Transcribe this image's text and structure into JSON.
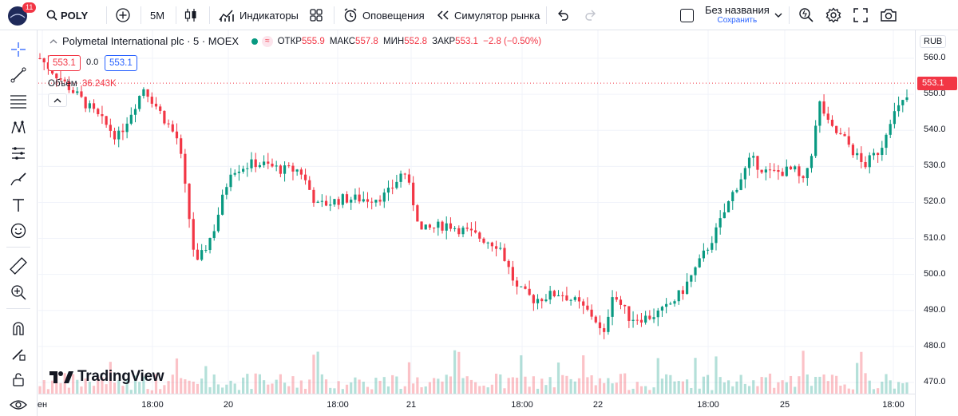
{
  "topbar": {
    "notification_count": "11",
    "symbol": "POLY",
    "interval": "5M",
    "indicators_label": "Индикаторы",
    "alerts_label": "Оповещения",
    "replay_label": "Симулятор рынка",
    "layout_name": "Без названия",
    "layout_status": "Сохранить"
  },
  "legend": {
    "title": "Polymetal International plc · 5 · MOEX",
    "open_label": "ОТКР",
    "open": "555.9",
    "high_label": "МАКС",
    "high": "557.8",
    "low_label": "МИН",
    "low": "552.8",
    "close_label": "ЗАКР",
    "close": "553.1",
    "change": "−2.8 (−0.50%)",
    "sell_price": "553.1",
    "spread": "0.0",
    "buy_price": "553.1",
    "volume_label": "Объём",
    "volume_value": "36.243K"
  },
  "axis": {
    "currency": "RUB",
    "last_price_label": "553.1"
  },
  "watermark": "TradingView",
  "colors": {
    "up": "#089981",
    "down": "#f23645",
    "grid": "#f0f3fa",
    "accent": "#2962ff"
  },
  "chart_data": {
    "type": "candlestick",
    "symbol": "POLY",
    "exchange": "MOEX",
    "interval": "5",
    "ylim": [
      465,
      563
    ],
    "y_ticks": [
      470,
      480,
      490,
      500,
      510,
      520,
      530,
      540,
      550,
      560
    ],
    "x_ticks": [
      "ен",
      "18:00",
      "20",
      "18:00",
      "21",
      "18:00",
      "22",
      "18:00",
      "25",
      "18:00"
    ],
    "last_price": 553.1,
    "price_path": [
      {
        "t": 0,
        "p": 560
      },
      {
        "t": 0.05,
        "p": 548
      },
      {
        "t": 0.09,
        "p": 538
      },
      {
        "t": 0.12,
        "p": 552
      },
      {
        "t": 0.16,
        "p": 537
      },
      {
        "t": 0.18,
        "p": 502
      },
      {
        "t": 0.2,
        "p": 512
      },
      {
        "t": 0.22,
        "p": 529
      },
      {
        "t": 0.25,
        "p": 531
      },
      {
        "t": 0.28,
        "p": 529
      },
      {
        "t": 0.3,
        "p": 529
      },
      {
        "t": 0.32,
        "p": 519
      },
      {
        "t": 0.35,
        "p": 521
      },
      {
        "t": 0.38,
        "p": 521
      },
      {
        "t": 0.4,
        "p": 522
      },
      {
        "t": 0.42,
        "p": 529
      },
      {
        "t": 0.44,
        "p": 512
      },
      {
        "t": 0.47,
        "p": 514
      },
      {
        "t": 0.5,
        "p": 511
      },
      {
        "t": 0.53,
        "p": 508
      },
      {
        "t": 0.55,
        "p": 496
      },
      {
        "t": 0.57,
        "p": 493
      },
      {
        "t": 0.6,
        "p": 495
      },
      {
        "t": 0.62,
        "p": 492
      },
      {
        "t": 0.64,
        "p": 488
      },
      {
        "t": 0.65,
        "p": 482
      },
      {
        "t": 0.66,
        "p": 495
      },
      {
        "t": 0.68,
        "p": 488
      },
      {
        "t": 0.7,
        "p": 488
      },
      {
        "t": 0.72,
        "p": 490
      },
      {
        "t": 0.74,
        "p": 495
      },
      {
        "t": 0.76,
        "p": 503
      },
      {
        "t": 0.78,
        "p": 512
      },
      {
        "t": 0.8,
        "p": 523
      },
      {
        "t": 0.82,
        "p": 532
      },
      {
        "t": 0.84,
        "p": 528
      },
      {
        "t": 0.87,
        "p": 529
      },
      {
        "t": 0.88,
        "p": 525
      },
      {
        "t": 0.89,
        "p": 534
      },
      {
        "t": 0.9,
        "p": 548
      },
      {
        "t": 0.91,
        "p": 541
      },
      {
        "t": 0.93,
        "p": 537
      },
      {
        "t": 0.95,
        "p": 530
      },
      {
        "t": 0.97,
        "p": 535
      },
      {
        "t": 0.98,
        "p": 543
      },
      {
        "t": 1.0,
        "p": 549
      },
      {
        "t": 1.0,
        "p": 553.1
      }
    ]
  }
}
